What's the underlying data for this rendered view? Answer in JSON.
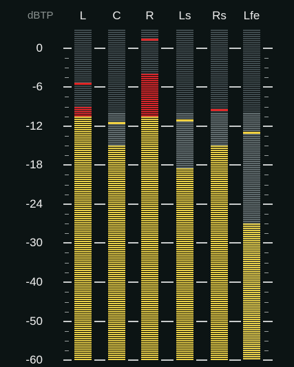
{
  "meter": {
    "unit_label": "dBTP",
    "scale": [
      0,
      -6,
      -12,
      -18,
      -24,
      -30,
      -40,
      -50,
      -60
    ],
    "channels": [
      {
        "name": "L",
        "level": -10.5,
        "hold": -10.0,
        "peak": -5.5
      },
      {
        "name": "C",
        "level": -15.0,
        "hold": -10.0,
        "peak": -11.5
      },
      {
        "name": "R",
        "level": -10.5,
        "hold": -4.0,
        "peak": 1.5
      },
      {
        "name": "Ls",
        "level": -18.5,
        "hold": -10.0,
        "peak": -11.0
      },
      {
        "name": "Rs",
        "level": -15.0,
        "hold": -10.0,
        "peak": -9.5
      },
      {
        "name": "Lfe",
        "level": -27.0,
        "hold": -10.0,
        "peak": -13.0
      }
    ],
    "colors": {
      "background": "#0c1414",
      "inactive": "#3f4b4e",
      "hold": "#5f6a6c",
      "level": "#e8d04a",
      "over": "#d8262a",
      "peak_normal": "#f0d040",
      "peak_red": "#e02828"
    }
  }
}
